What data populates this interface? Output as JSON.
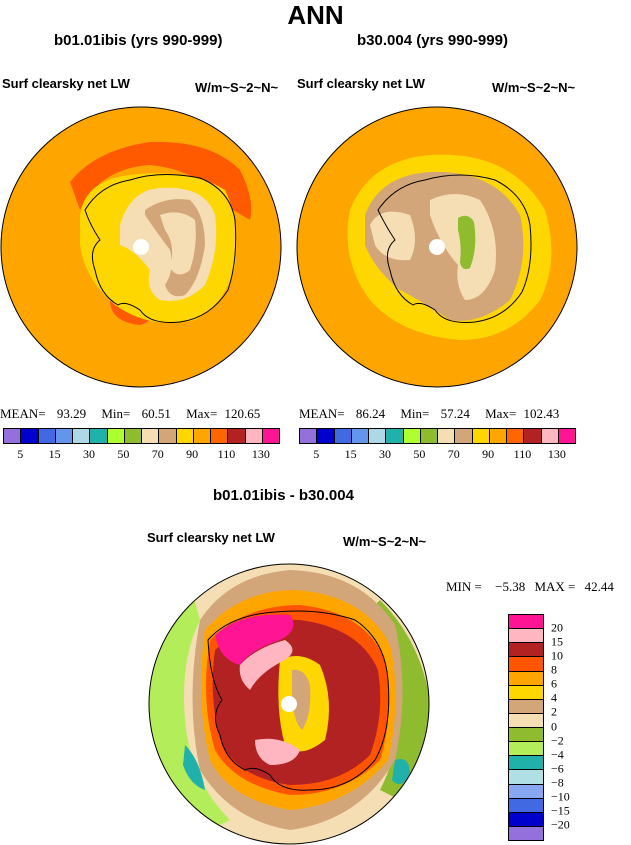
{
  "page": {
    "title": "ANN"
  },
  "panel_left": {
    "title": "b01.01ibis (yrs 990-999)",
    "variable": "Surf clearsky net LW",
    "units": "W/m~S~2~N~",
    "stats": {
      "mean_label": "MEAN=",
      "mean": "93.29",
      "min_label": "Min=",
      "min": "60.51",
      "max_label": "Max=",
      "max": "120.65"
    }
  },
  "panel_right": {
    "title": "b30.004 (yrs 990-999)",
    "variable": "Surf clearsky net LW",
    "units": "W/m~S~2~N~",
    "stats": {
      "mean_label": "MEAN=",
      "mean": "86.24",
      "min_label": "Min=",
      "min": "57.24",
      "max_label": "Max=",
      "max": "102.43"
    }
  },
  "panel_diff": {
    "title": "b01.01ibis - b30.004",
    "variable": "Surf clearsky net LW",
    "units": "W/m~S~2~N~",
    "stats": {
      "min_label": "MIN =",
      "min": "−5.38",
      "max_label": "MAX =",
      "max": "42.44"
    }
  },
  "colorbar_abs": {
    "colors": [
      "#9370db",
      "#0000cd",
      "#4169e1",
      "#6495ed",
      "#add8e6",
      "#20b2aa",
      "#adff2f",
      "#8fbc2f",
      "#f5deb3",
      "#d2a679",
      "#ffd700",
      "#ffa500",
      "#ff6600",
      "#b22222",
      "#ffb6c1",
      "#ff1493"
    ],
    "labels": [
      "5",
      "15",
      "30",
      "50",
      "70",
      "90",
      "110",
      "130"
    ]
  },
  "colorbar_diff": {
    "colors": [
      "#ff1493",
      "#ffb6c1",
      "#b22222",
      "#ff5500",
      "#ffa500",
      "#ffd700",
      "#d2a679",
      "#f5deb3",
      "#8fbc2f",
      "#b3ee5a",
      "#20b2aa",
      "#b0e0e6",
      "#87a8f0",
      "#4169e1",
      "#0000cd",
      "#9370db"
    ],
    "labels": [
      "20",
      "15",
      "10",
      "8",
      "6",
      "4",
      "2",
      "0",
      "−2",
      "−4",
      "−6",
      "−8",
      "−10",
      "−15",
      "−20"
    ]
  },
  "colors": {
    "ocean_abs": "#ffa500",
    "land_line": "#000000"
  }
}
